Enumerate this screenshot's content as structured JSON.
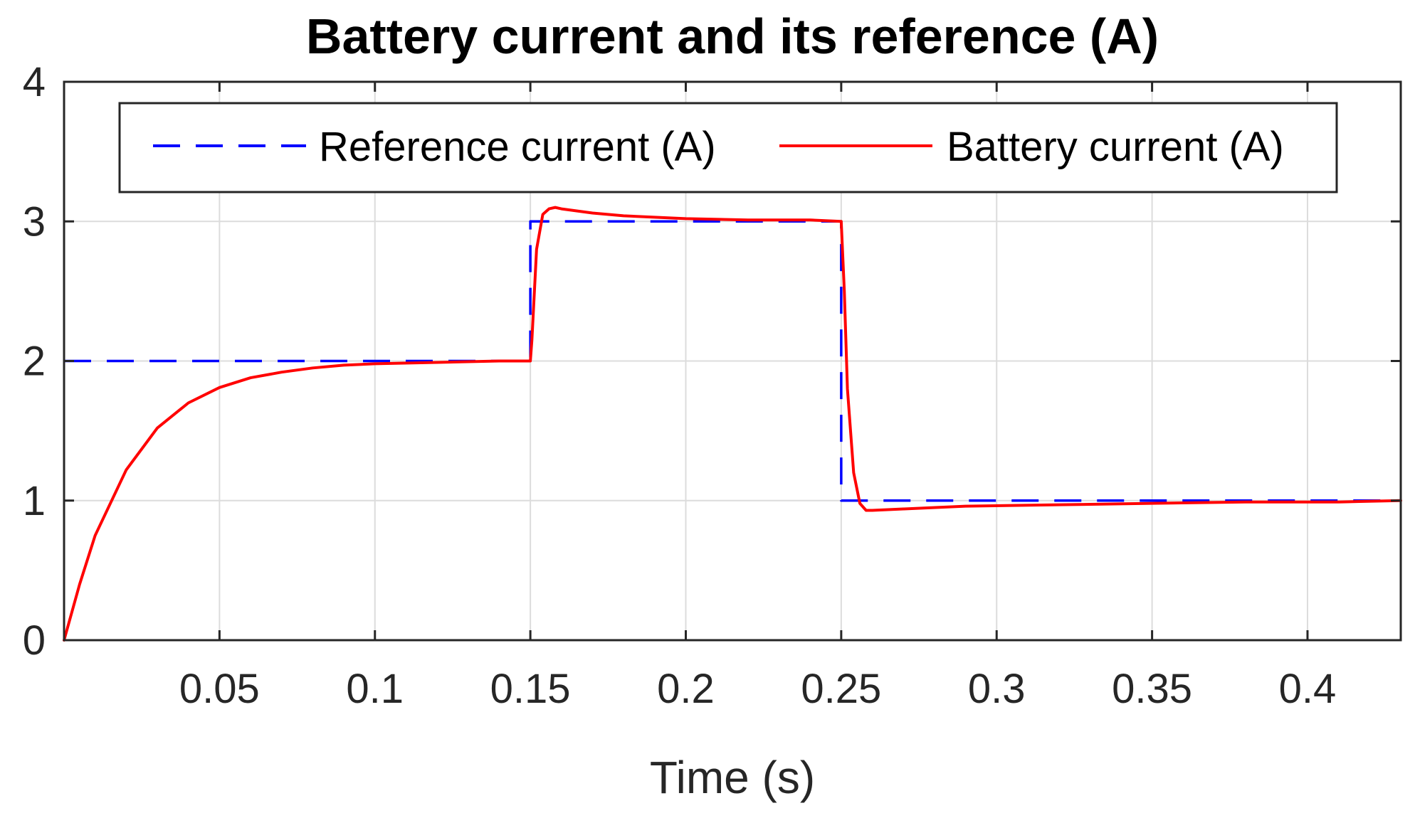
{
  "chart_data": {
    "type": "line",
    "title": "Battery current and its reference (A)",
    "xlabel": "Time (s)",
    "ylabel": "",
    "xlim": [
      0,
      0.43
    ],
    "ylim": [
      0,
      4
    ],
    "grid": true,
    "legend_position": "top",
    "legend_orientation": "horizontal",
    "x_ticks": [
      0.05,
      0.1,
      0.15,
      0.2,
      0.25,
      0.3,
      0.35,
      0.4
    ],
    "x_tick_labels": [
      "0.05",
      "0.1",
      "0.15",
      "0.2",
      "0.25",
      "0.3",
      "0.35",
      "0.4"
    ],
    "y_ticks": [
      0,
      1,
      2,
      3,
      4
    ],
    "y_tick_labels": [
      "0",
      "1",
      "2",
      "3",
      "4"
    ],
    "series": [
      {
        "name": "Reference current (A)",
        "color": "#0000ff",
        "style": "dashed",
        "x": [
          0,
          0.15,
          0.15,
          0.25,
          0.25,
          0.43
        ],
        "y": [
          2,
          2,
          3,
          3,
          1,
          1
        ]
      },
      {
        "name": "Battery current (A)",
        "color": "#ff0000",
        "style": "solid",
        "x": [
          0,
          0.005,
          0.01,
          0.02,
          0.03,
          0.04,
          0.05,
          0.06,
          0.07,
          0.08,
          0.09,
          0.1,
          0.12,
          0.14,
          0.15,
          0.1505,
          0.152,
          0.154,
          0.156,
          0.158,
          0.16,
          0.17,
          0.18,
          0.2,
          0.22,
          0.24,
          0.25,
          0.251,
          0.252,
          0.254,
          0.256,
          0.258,
          0.26,
          0.27,
          0.29,
          0.32,
          0.35,
          0.38,
          0.41,
          0.43
        ],
        "y": [
          0,
          0.4,
          0.75,
          1.22,
          1.52,
          1.7,
          1.81,
          1.88,
          1.92,
          1.95,
          1.97,
          1.98,
          1.99,
          2.0,
          2.0,
          2.15,
          2.8,
          3.05,
          3.09,
          3.1,
          3.09,
          3.06,
          3.04,
          3.02,
          3.01,
          3.01,
          3.0,
          2.5,
          1.8,
          1.2,
          0.98,
          0.93,
          0.93,
          0.94,
          0.96,
          0.97,
          0.98,
          0.99,
          0.99,
          1.0
        ]
      }
    ]
  }
}
